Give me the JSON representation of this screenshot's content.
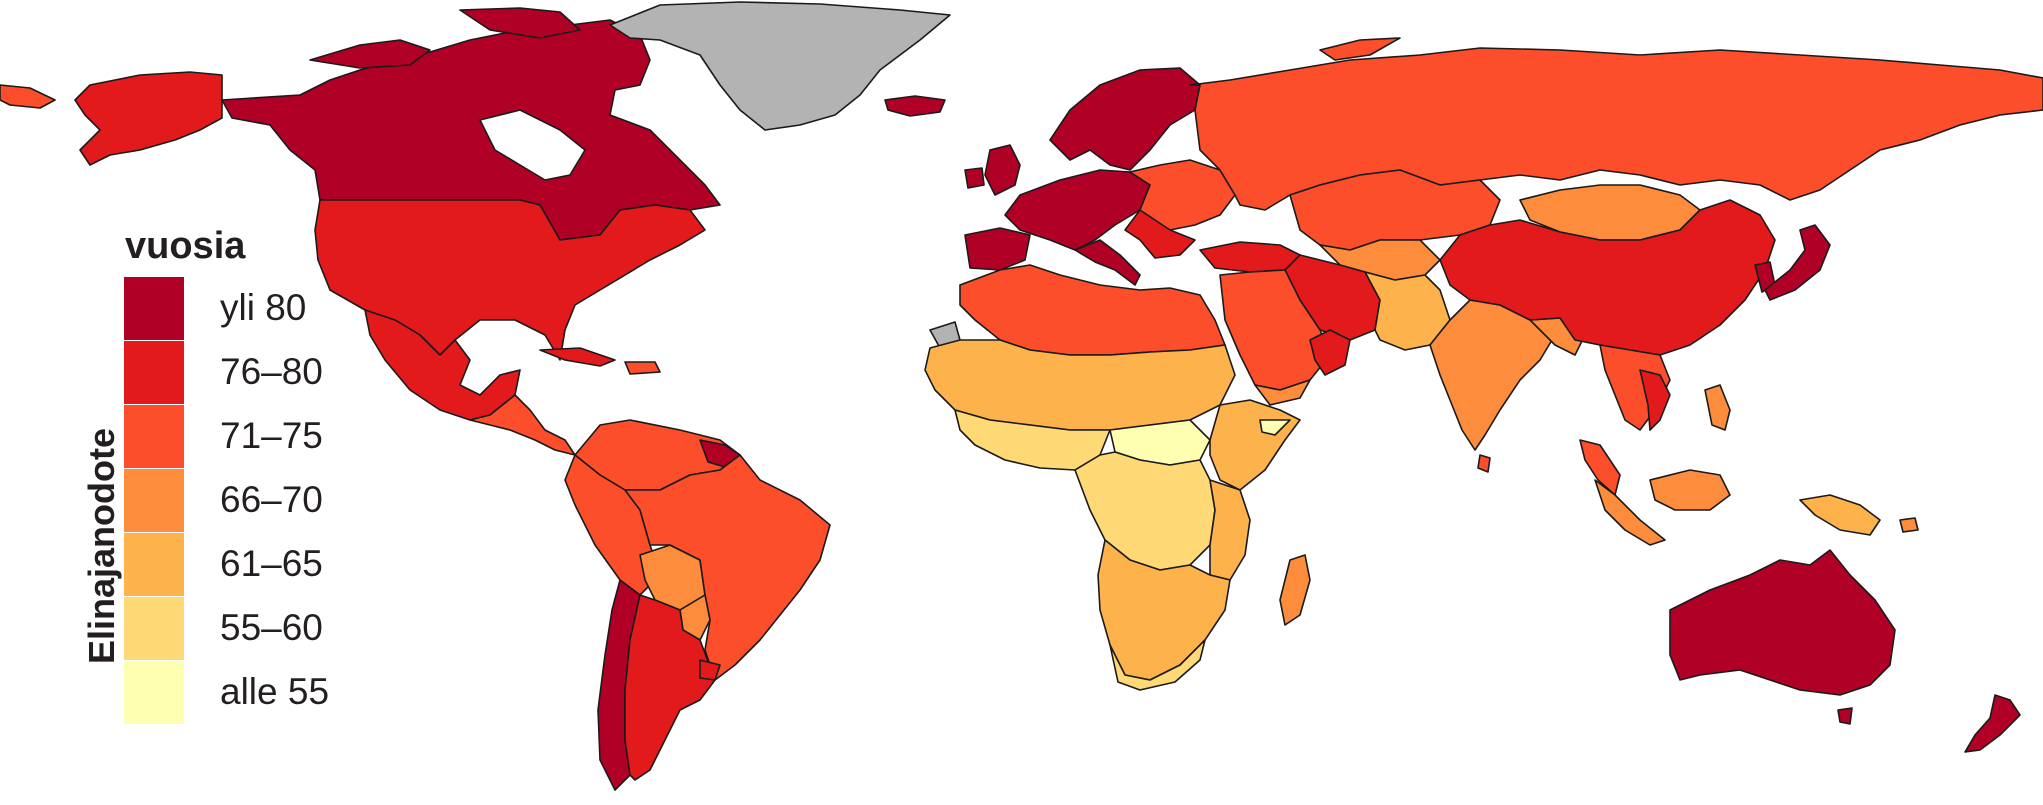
{
  "legend": {
    "title": "vuosia",
    "axis_label": "Elinajanodote",
    "classes": [
      {
        "label": "yli 80",
        "color": "#b10026"
      },
      {
        "label": "76–80",
        "color": "#e31a1c"
      },
      {
        "label": "71–75",
        "color": "#fc4e2a"
      },
      {
        "label": "66–70",
        "color": "#fd8d3c"
      },
      {
        "label": "61–65",
        "color": "#feb24c"
      },
      {
        "label": "55–60",
        "color": "#fed976"
      },
      {
        "label": "alle 55",
        "color": "#ffffb2"
      }
    ]
  },
  "colors": {
    "no_data": "#b3b3b3",
    "border": "#1a1a1a",
    "background": "#ffffff"
  }
}
